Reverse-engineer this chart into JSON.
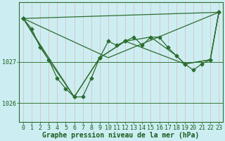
{
  "title": "Graphe pression niveau de la mer (hPa)",
  "bg_color": "#cceef2",
  "line_color": "#2d6e2d",
  "vgrid_color": "#e8b4b4",
  "hgrid_color": "#3a7a3a",
  "xlim": [
    -0.5,
    23.5
  ],
  "ylim": [
    1025.55,
    1028.45
  ],
  "yticks": [
    1026,
    1027
  ],
  "xticks": [
    0,
    1,
    2,
    3,
    4,
    5,
    6,
    7,
    8,
    9,
    10,
    11,
    12,
    13,
    14,
    15,
    16,
    17,
    18,
    19,
    20,
    21,
    22,
    23
  ],
  "series": [
    {
      "x": [
        0,
        1,
        2,
        3,
        4,
        5,
        6,
        7,
        8,
        9,
        10,
        11,
        12,
        13,
        14,
        15,
        16,
        17,
        18,
        19,
        20,
        21,
        22,
        23
      ],
      "y": [
        1028.05,
        1027.8,
        1027.35,
        1027.05,
        1026.6,
        1026.35,
        1026.15,
        1026.15,
        1026.6,
        1027.1,
        1027.5,
        1027.4,
        1027.5,
        1027.6,
        1027.4,
        1027.6,
        1027.6,
        1027.35,
        1027.15,
        1026.95,
        1026.8,
        1026.95,
        1027.05,
        1028.2
      ],
      "marker": "D",
      "markersize": 2.5,
      "linewidth": 0.9
    },
    {
      "x": [
        0,
        23
      ],
      "y": [
        1028.05,
        1028.2
      ],
      "marker": null,
      "markersize": 0,
      "linewidth": 0.9
    },
    {
      "x": [
        0,
        10,
        23
      ],
      "y": [
        1028.05,
        1027.1,
        1028.2
      ],
      "marker": null,
      "markersize": 0,
      "linewidth": 0.9
    },
    {
      "x": [
        0,
        6,
        9,
        12,
        19,
        22,
        23
      ],
      "y": [
        1028.05,
        1026.15,
        1027.1,
        1027.5,
        1026.95,
        1027.05,
        1028.2
      ],
      "marker": "D",
      "markersize": 2.5,
      "linewidth": 0.9
    },
    {
      "x": [
        0,
        3,
        6,
        9,
        12,
        15,
        18,
        19,
        22,
        23
      ],
      "y": [
        1028.05,
        1027.05,
        1026.15,
        1027.1,
        1027.5,
        1027.6,
        1027.15,
        1026.95,
        1027.05,
        1028.2
      ],
      "marker": null,
      "markersize": 0,
      "linewidth": 0.9
    }
  ],
  "font_size_label": 7,
  "font_size_tick": 6,
  "tick_color": "#1a5c1a"
}
